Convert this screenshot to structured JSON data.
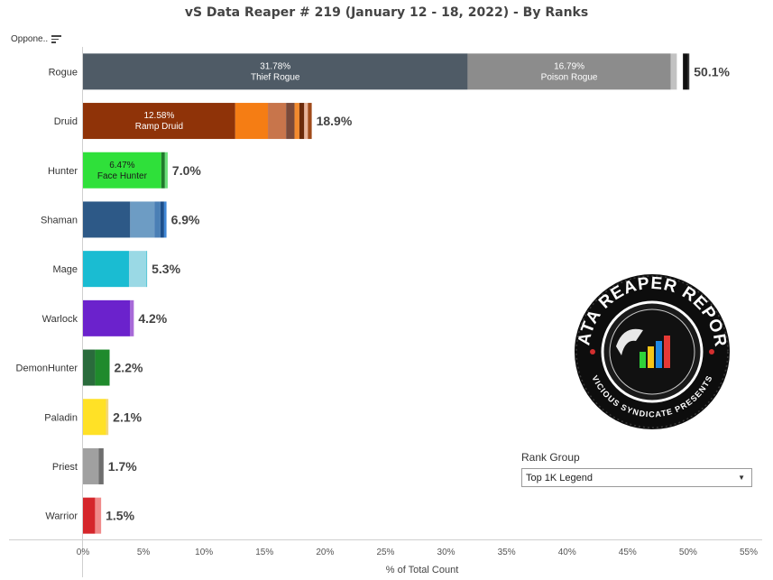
{
  "title": "vS Data Reaper #  219 (January 12 - 18, 2022) - By Ranks",
  "opponent_header": "Oppone..",
  "rank_group": {
    "label": "Rank Group",
    "selected": "Top 1K Legend"
  },
  "logo": {
    "main_text": "DATA REAPER REPORT",
    "sub_text": "VICIOUS SYNDICATE PRESENTS"
  },
  "chart_data": {
    "type": "bar",
    "orientation": "horizontal",
    "stacked": true,
    "xlabel": "% of Total Count",
    "xlim": [
      0,
      55
    ],
    "xticks": [
      "0%",
      "5%",
      "10%",
      "15%",
      "20%",
      "25%",
      "30%",
      "35%",
      "40%",
      "45%",
      "50%",
      "55%"
    ],
    "categories": [
      "Rogue",
      "Druid",
      "Hunter",
      "Shaman",
      "Mage",
      "Warlock",
      "DemonHunter",
      "Paladin",
      "Priest",
      "Warrior"
    ],
    "totals": [
      "50.1%",
      "18.9%",
      "7.0%",
      "6.9%",
      "5.3%",
      "4.2%",
      "2.2%",
      "2.1%",
      "1.7%",
      "1.5%"
    ],
    "bars": [
      {
        "class": "Rogue",
        "segments": [
          {
            "value": 31.78,
            "color": "#4f5b66",
            "pct_label": "31.78%",
            "name": "Thief Rogue"
          },
          {
            "value": 16.79,
            "color": "#8c8c8c",
            "pct_label": "16.79%",
            "name": "Poison Rogue"
          },
          {
            "value": 0.5,
            "color": "#c2c2c2"
          },
          {
            "value": 0.5,
            "color": "#ffffff"
          },
          {
            "value": 0.4,
            "color": "#111111"
          },
          {
            "value": 0.13,
            "color": "#3a3a3a"
          }
        ]
      },
      {
        "class": "Druid",
        "segments": [
          {
            "value": 12.58,
            "color": "#8f3308",
            "pct_label": "12.58%",
            "name": "Ramp Druid"
          },
          {
            "value": 2.7,
            "color": "#f57d14"
          },
          {
            "value": 1.5,
            "color": "#c8754b"
          },
          {
            "value": 0.7,
            "color": "#7a4a3a"
          },
          {
            "value": 0.4,
            "color": "#f28a2e"
          },
          {
            "value": 0.4,
            "color": "#6b2a0a"
          },
          {
            "value": 0.3,
            "color": "#e8b49a"
          },
          {
            "value": 0.32,
            "color": "#a04a1a"
          }
        ]
      },
      {
        "class": "Hunter",
        "segments": [
          {
            "value": 6.47,
            "color": "#2fe03a",
            "pct_label": "6.47%",
            "name": "Face Hunter"
          },
          {
            "value": 0.3,
            "color": "#1f7a2b"
          },
          {
            "value": 0.23,
            "color": "#6be07a"
          }
        ]
      },
      {
        "class": "Shaman",
        "segments": [
          {
            "value": 3.9,
            "color": "#2d5987"
          },
          {
            "value": 2.0,
            "color": "#6d9cc4"
          },
          {
            "value": 0.5,
            "color": "#4a7fb5"
          },
          {
            "value": 0.3,
            "color": "#1c4f8c"
          },
          {
            "value": 0.2,
            "color": "#3e86d6"
          }
        ]
      },
      {
        "class": "Mage",
        "segments": [
          {
            "value": 3.8,
            "color": "#1abcd2"
          },
          {
            "value": 1.4,
            "color": "#9ad9e5"
          },
          {
            "value": 0.1,
            "color": "#5fc8d8"
          }
        ]
      },
      {
        "class": "Warlock",
        "segments": [
          {
            "value": 3.9,
            "color": "#6b22cc"
          },
          {
            "value": 0.3,
            "color": "#a86ad8"
          }
        ]
      },
      {
        "class": "DemonHunter",
        "segments": [
          {
            "value": 1.0,
            "color": "#2a6b3c"
          },
          {
            "value": 1.2,
            "color": "#1f8a2c"
          }
        ]
      },
      {
        "class": "Paladin",
        "segments": [
          {
            "value": 1.9,
            "color": "#ffe126"
          },
          {
            "value": 0.2,
            "color": "#f3d87a"
          }
        ]
      },
      {
        "class": "Priest",
        "segments": [
          {
            "value": 1.3,
            "color": "#a0a0a0"
          },
          {
            "value": 0.4,
            "color": "#6e6e6e"
          }
        ]
      },
      {
        "class": "Warrior",
        "segments": [
          {
            "value": 1.0,
            "color": "#d5262b"
          },
          {
            "value": 0.5,
            "color": "#f08a8a"
          }
        ]
      }
    ]
  }
}
